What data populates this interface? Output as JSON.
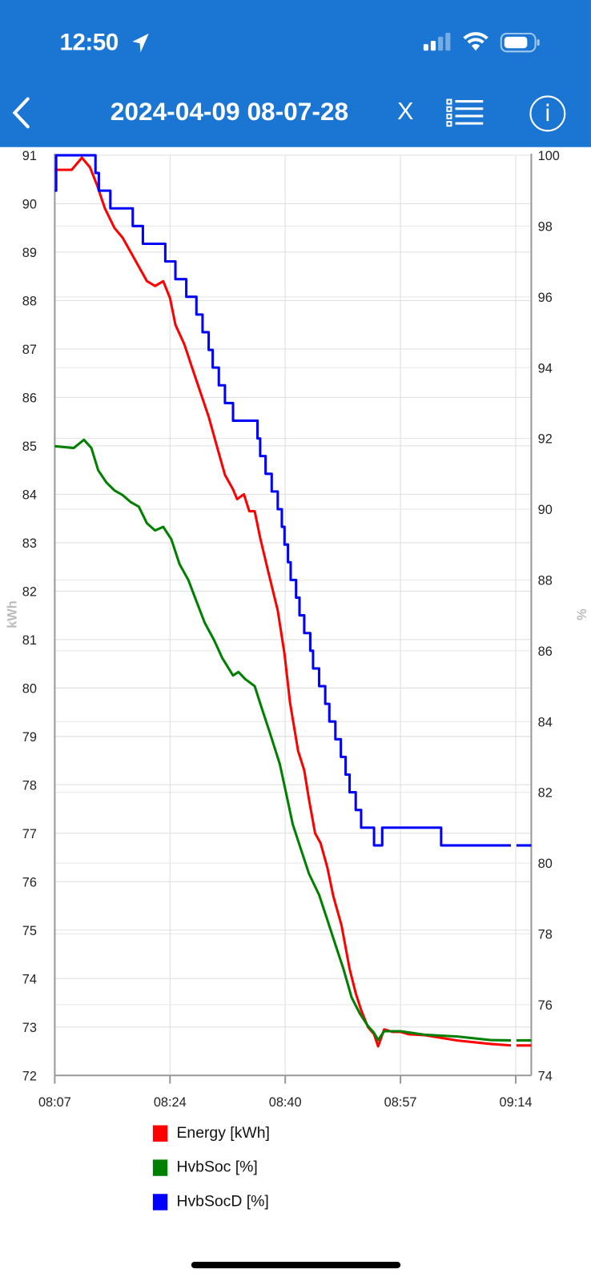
{
  "status_bar": {
    "time": "12:50",
    "icons": [
      "location-arrow-icon",
      "cellular-signal-icon",
      "wifi-icon",
      "battery-icon"
    ]
  },
  "header": {
    "title": "2024-04-09 08-07-28",
    "close_label": "X",
    "icons": [
      "back-chevron-icon",
      "list-icon",
      "info-icon"
    ],
    "info_label": "i",
    "color": "#1a76d2"
  },
  "chart_data": {
    "type": "line",
    "title": "",
    "xlabel": "",
    "x_units": "minutes since 08:07",
    "xlim": [
      0,
      70.3
    ],
    "x_ticks": [
      {
        "v": 0,
        "label": "08:07"
      },
      {
        "v": 17,
        "label": "08:24"
      },
      {
        "v": 34,
        "label": "08:40"
      },
      {
        "v": 51,
        "label": "08:57"
      },
      {
        "v": 68,
        "label": "09:14"
      }
    ],
    "ylabel_left": "kWh",
    "ylim_left": [
      72,
      91
    ],
    "y_ticks_left": [
      72,
      73,
      74,
      75,
      76,
      77,
      78,
      79,
      80,
      81,
      82,
      83,
      84,
      85,
      86,
      87,
      88,
      89,
      90,
      91
    ],
    "ylabel_right": "%",
    "ylim_right": [
      74,
      100
    ],
    "y_ticks_right": [
      74,
      76,
      78,
      80,
      82,
      84,
      86,
      88,
      90,
      92,
      94,
      96,
      98,
      100
    ],
    "grid": true,
    "legend_position": "bottom",
    "series": [
      {
        "name": "Energy [kWh]",
        "axis": "left",
        "color": "#ff0000",
        "style": "line",
        "points": [
          [
            0,
            90.7
          ],
          [
            2.5,
            90.7
          ],
          [
            4.0,
            90.95
          ],
          [
            5.2,
            90.75
          ],
          [
            6.2,
            90.4
          ],
          [
            7.4,
            89.9
          ],
          [
            8.8,
            89.5
          ],
          [
            10.0,
            89.3
          ],
          [
            11.2,
            89.0
          ],
          [
            12.4,
            88.7
          ],
          [
            13.6,
            88.4
          ],
          [
            14.8,
            88.3
          ],
          [
            16.0,
            88.4
          ],
          [
            17.0,
            88.05
          ],
          [
            17.8,
            87.5
          ],
          [
            19.1,
            87.1
          ],
          [
            20.3,
            86.6
          ],
          [
            21.5,
            86.1
          ],
          [
            22.7,
            85.6
          ],
          [
            23.9,
            85.0
          ],
          [
            25.1,
            84.4
          ],
          [
            26.3,
            84.1
          ],
          [
            26.9,
            83.9
          ],
          [
            27.9,
            84.0
          ],
          [
            28.7,
            83.65
          ],
          [
            29.5,
            83.65
          ],
          [
            30.3,
            83.1
          ],
          [
            31.5,
            82.4
          ],
          [
            32.9,
            81.6
          ],
          [
            33.9,
            80.7
          ],
          [
            34.7,
            79.7
          ],
          [
            35.9,
            78.7
          ],
          [
            36.8,
            78.3
          ],
          [
            37.5,
            77.7
          ],
          [
            38.4,
            77.0
          ],
          [
            39.2,
            76.8
          ],
          [
            40.2,
            76.3
          ],
          [
            41.1,
            75.7
          ],
          [
            42.3,
            75.1
          ],
          [
            43.5,
            74.2
          ],
          [
            44.4,
            73.7
          ],
          [
            45.2,
            73.35
          ],
          [
            46.2,
            73.0
          ],
          [
            47.1,
            72.85
          ],
          [
            47.7,
            72.6
          ],
          [
            48.6,
            72.95
          ],
          [
            49.8,
            72.9
          ],
          [
            51.0,
            72.9
          ],
          [
            52.2,
            72.85
          ],
          [
            54.6,
            72.83
          ],
          [
            59.4,
            72.72
          ],
          [
            64.3,
            72.65
          ],
          [
            67.3,
            72.62
          ],
          null,
          [
            68.1,
            72.62
          ],
          [
            70.3,
            72.62
          ]
        ]
      },
      {
        "name": "HvbSoc [%]",
        "axis": "right",
        "color": "#008000",
        "style": "line",
        "points": [
          [
            0,
            91.78
          ],
          [
            2.8,
            91.73
          ],
          [
            4.3,
            91.96
          ],
          [
            5.4,
            91.73
          ],
          [
            6.4,
            91.1
          ],
          [
            7.6,
            90.76
          ],
          [
            8.8,
            90.53
          ],
          [
            10.0,
            90.4
          ],
          [
            11.2,
            90.2
          ],
          [
            12.4,
            90.07
          ],
          [
            13.6,
            89.6
          ],
          [
            14.8,
            89.4
          ],
          [
            16.0,
            89.5
          ],
          [
            17.2,
            89.15
          ],
          [
            18.4,
            88.45
          ],
          [
            19.7,
            88.0
          ],
          [
            20.9,
            87.4
          ],
          [
            22.1,
            86.8
          ],
          [
            23.5,
            86.3
          ],
          [
            24.7,
            85.8
          ],
          [
            26.3,
            85.3
          ],
          [
            27.1,
            85.4
          ],
          [
            28.1,
            85.2
          ],
          [
            29.5,
            85.0
          ],
          [
            30.5,
            84.4
          ],
          [
            31.7,
            83.7
          ],
          [
            33.2,
            82.8
          ],
          [
            34.1,
            82.0
          ],
          [
            35.1,
            81.1
          ],
          [
            36.3,
            80.4
          ],
          [
            37.5,
            79.7
          ],
          [
            39.0,
            79.1
          ],
          [
            40.2,
            78.4
          ],
          [
            41.4,
            77.7
          ],
          [
            42.6,
            77.0
          ],
          [
            43.8,
            76.2
          ],
          [
            45.0,
            75.75
          ],
          [
            46.2,
            75.4
          ],
          [
            47.1,
            75.2
          ],
          [
            47.7,
            75.0
          ],
          [
            48.6,
            75.25
          ],
          [
            51.0,
            75.25
          ],
          [
            54.6,
            75.15
          ],
          [
            59.4,
            75.1
          ],
          [
            64.3,
            75.0
          ],
          [
            67.3,
            74.99
          ],
          null,
          [
            68.1,
            74.99
          ],
          [
            70.3,
            74.99
          ]
        ]
      },
      {
        "name": "HvbSocD [%]",
        "axis": "right",
        "color": "#0000ff",
        "style": "step",
        "points": [
          [
            0,
            99.0
          ],
          [
            0.2,
            100.0
          ],
          [
            6.0,
            99.5
          ],
          [
            6.5,
            99.0
          ],
          [
            8.2,
            98.5
          ],
          [
            11.5,
            98.0
          ],
          [
            13.0,
            97.5
          ],
          [
            16.3,
            97.0
          ],
          [
            17.8,
            96.5
          ],
          [
            19.4,
            96.0
          ],
          [
            20.9,
            95.5
          ],
          [
            21.8,
            95.0
          ],
          [
            22.7,
            94.5
          ],
          [
            23.3,
            94.0
          ],
          [
            24.2,
            93.5
          ],
          [
            25.1,
            93.0
          ],
          [
            26.3,
            92.5
          ],
          [
            29.9,
            92.0
          ],
          [
            30.3,
            91.5
          ],
          [
            31.1,
            91.0
          ],
          [
            32.0,
            90.5
          ],
          [
            32.9,
            90.0
          ],
          [
            33.5,
            89.5
          ],
          [
            33.9,
            89.0
          ],
          [
            34.4,
            88.5
          ],
          [
            34.8,
            88.0
          ],
          [
            35.6,
            87.5
          ],
          [
            36.1,
            87.0
          ],
          [
            36.8,
            86.5
          ],
          [
            37.7,
            86.0
          ],
          [
            38.1,
            85.5
          ],
          [
            39.0,
            85.0
          ],
          [
            39.9,
            84.5
          ],
          [
            40.5,
            84.0
          ],
          [
            41.4,
            83.5
          ],
          [
            42.2,
            83.0
          ],
          [
            42.9,
            82.5
          ],
          [
            43.5,
            82.0
          ],
          [
            44.4,
            81.5
          ],
          [
            45.2,
            81.0
          ],
          [
            47.1,
            80.5
          ],
          [
            48.3,
            81.0
          ],
          [
            57.0,
            80.5
          ],
          [
            67.3,
            80.5
          ],
          null,
          [
            68.1,
            80.5
          ],
          [
            70.3,
            80.5
          ]
        ]
      }
    ]
  }
}
